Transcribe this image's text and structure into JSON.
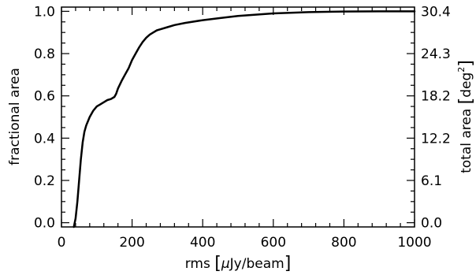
{
  "chart_data": {
    "type": "line",
    "title": "",
    "xlabel_pre": "rms ",
    "xlabel_mu": "μ",
    "xlabel_post": "Jy/beam",
    "ylabel": "fractional area",
    "y2label_pre": "total area ",
    "y2label_unit": "deg",
    "y2label_exp": "2",
    "xlim": [
      0,
      1000
    ],
    "ylim": [
      -0.02,
      1.02
    ],
    "grid": false,
    "legend": "none",
    "x_ticks": [
      0,
      200,
      400,
      600,
      800,
      1000
    ],
    "x_tick_labels": [
      "0",
      "200",
      "400",
      "600",
      "800",
      "1000"
    ],
    "y_ticks": [
      0.0,
      0.2,
      0.4,
      0.6,
      0.8,
      1.0
    ],
    "y_tick_labels": [
      "0.0",
      "0.2",
      "0.4",
      "0.6",
      "0.8",
      "1.0"
    ],
    "y2_ticks": [
      0.0,
      0.2,
      0.4,
      0.6,
      0.8,
      1.0
    ],
    "y2_tick_labels": [
      "0.0",
      "6.1",
      "12.2",
      "18.2",
      "24.3",
      "30.4"
    ],
    "series": [
      {
        "x": [
          35,
          40,
          45,
          50,
          55,
          60,
          65,
          70,
          75,
          80,
          90,
          100,
          110,
          120,
          130,
          140,
          150,
          155,
          160,
          170,
          180,
          190,
          200,
          210,
          220,
          230,
          240,
          250,
          260,
          270,
          280,
          300,
          320,
          350,
          400,
          450,
          500,
          600,
          700,
          800,
          900,
          1000
        ],
        "y": [
          -0.02,
          0.02,
          0.1,
          0.2,
          0.3,
          0.38,
          0.43,
          0.46,
          0.48,
          0.5,
          0.53,
          0.55,
          0.56,
          0.57,
          0.58,
          0.585,
          0.595,
          0.61,
          0.635,
          0.67,
          0.7,
          0.73,
          0.77,
          0.8,
          0.83,
          0.855,
          0.875,
          0.89,
          0.9,
          0.91,
          0.915,
          0.925,
          0.935,
          0.945,
          0.958,
          0.968,
          0.978,
          0.99,
          0.996,
          0.999,
          1.0,
          1.0
        ]
      }
    ]
  }
}
